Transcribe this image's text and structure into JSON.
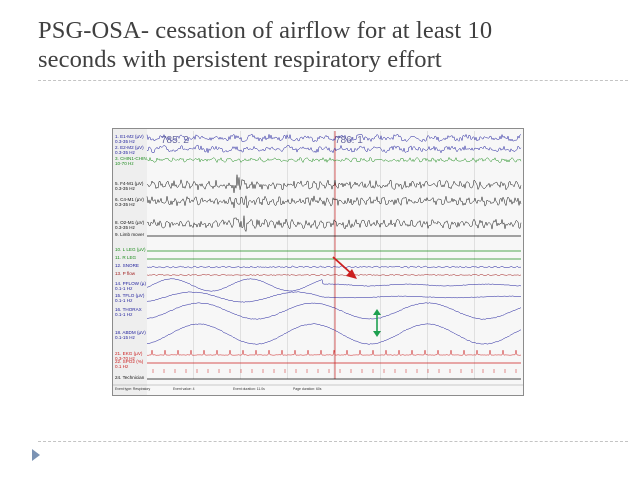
{
  "slide": {
    "title_line1": "PSG-OSA- cessation of airflow for at least 10",
    "title_line2": "seconds with persistent respiratory effort"
  },
  "psg": {
    "epoch_labels": [
      "785: 2",
      "786: 1"
    ],
    "channels": [
      {
        "id": "e1m2",
        "label": "1. E1-M2 (µV)\n0.3-35 Hz",
        "color": "#1c1c9c"
      },
      {
        "id": "e2m2",
        "label": "2. E2-M2 (µV)\n0.3-35 Hz",
        "color": "#1c1c9c"
      },
      {
        "id": "chin",
        "label": "3. CHIN1-CHIN\n10-70 Hz",
        "color": "#1c8c1c"
      },
      {
        "id": "f4m1",
        "label": "5. F4-M1 (µV)\n0.3-35 Hz",
        "color": "#111111"
      },
      {
        "id": "c4m1",
        "label": "6. C4-M1 (µV)\n0.3-35 Hz",
        "color": "#111111"
      },
      {
        "id": "o2m1",
        "label": "8. O2-M1 (µV)\n0.3-35 Hz",
        "color": "#111111"
      },
      {
        "id": "limb",
        "label": "9. Limb mover",
        "color": "#111111"
      },
      {
        "id": "lleg",
        "label": "10. L LEG (µV)",
        "color": "#1c8c1c"
      },
      {
        "id": "rleg",
        "label": "11. R LEG",
        "color": "#1c8c1c"
      },
      {
        "id": "snore",
        "label": "12. SNORE",
        "color": "#1c1c9c"
      },
      {
        "id": "pressure",
        "label": "13. P flow",
        "color": "#a01c1c"
      },
      {
        "id": "pflow",
        "label": "14. PFLOW (µ)\n0.1-1 Hz",
        "color": "#1c1c9c"
      },
      {
        "id": "tflo",
        "label": "15. TFLO (µV)\n0.1-1 Hz",
        "color": "#1c1c9c"
      },
      {
        "id": "thorax",
        "label": "16. THORAX\n0.1-1 Hz",
        "color": "#1c1c9c"
      },
      {
        "id": "abdm",
        "label": "18. ABDM (µV)\n0.1-15 Hz",
        "color": "#1c1c9c"
      },
      {
        "id": "ekg",
        "label": "21. EKG (µV)\n0.3-70 Hz",
        "color": "#cc2020"
      },
      {
        "id": "spo2",
        "label": "22. SPO2 (%)\n0.1 Hz",
        "color": "#cc2020"
      },
      {
        "id": "tech",
        "label": "24. Technician",
        "color": "#111111"
      }
    ],
    "status_bar": [
      "Event type: Respiratory",
      "Event value: 4",
      "Event duration: 11.0s",
      "Page duration: 60s"
    ],
    "colors": {
      "obstructive_arrow": "#cc2020",
      "effort_arrow": "#1ea050",
      "event_marker": "#cc2020"
    }
  }
}
